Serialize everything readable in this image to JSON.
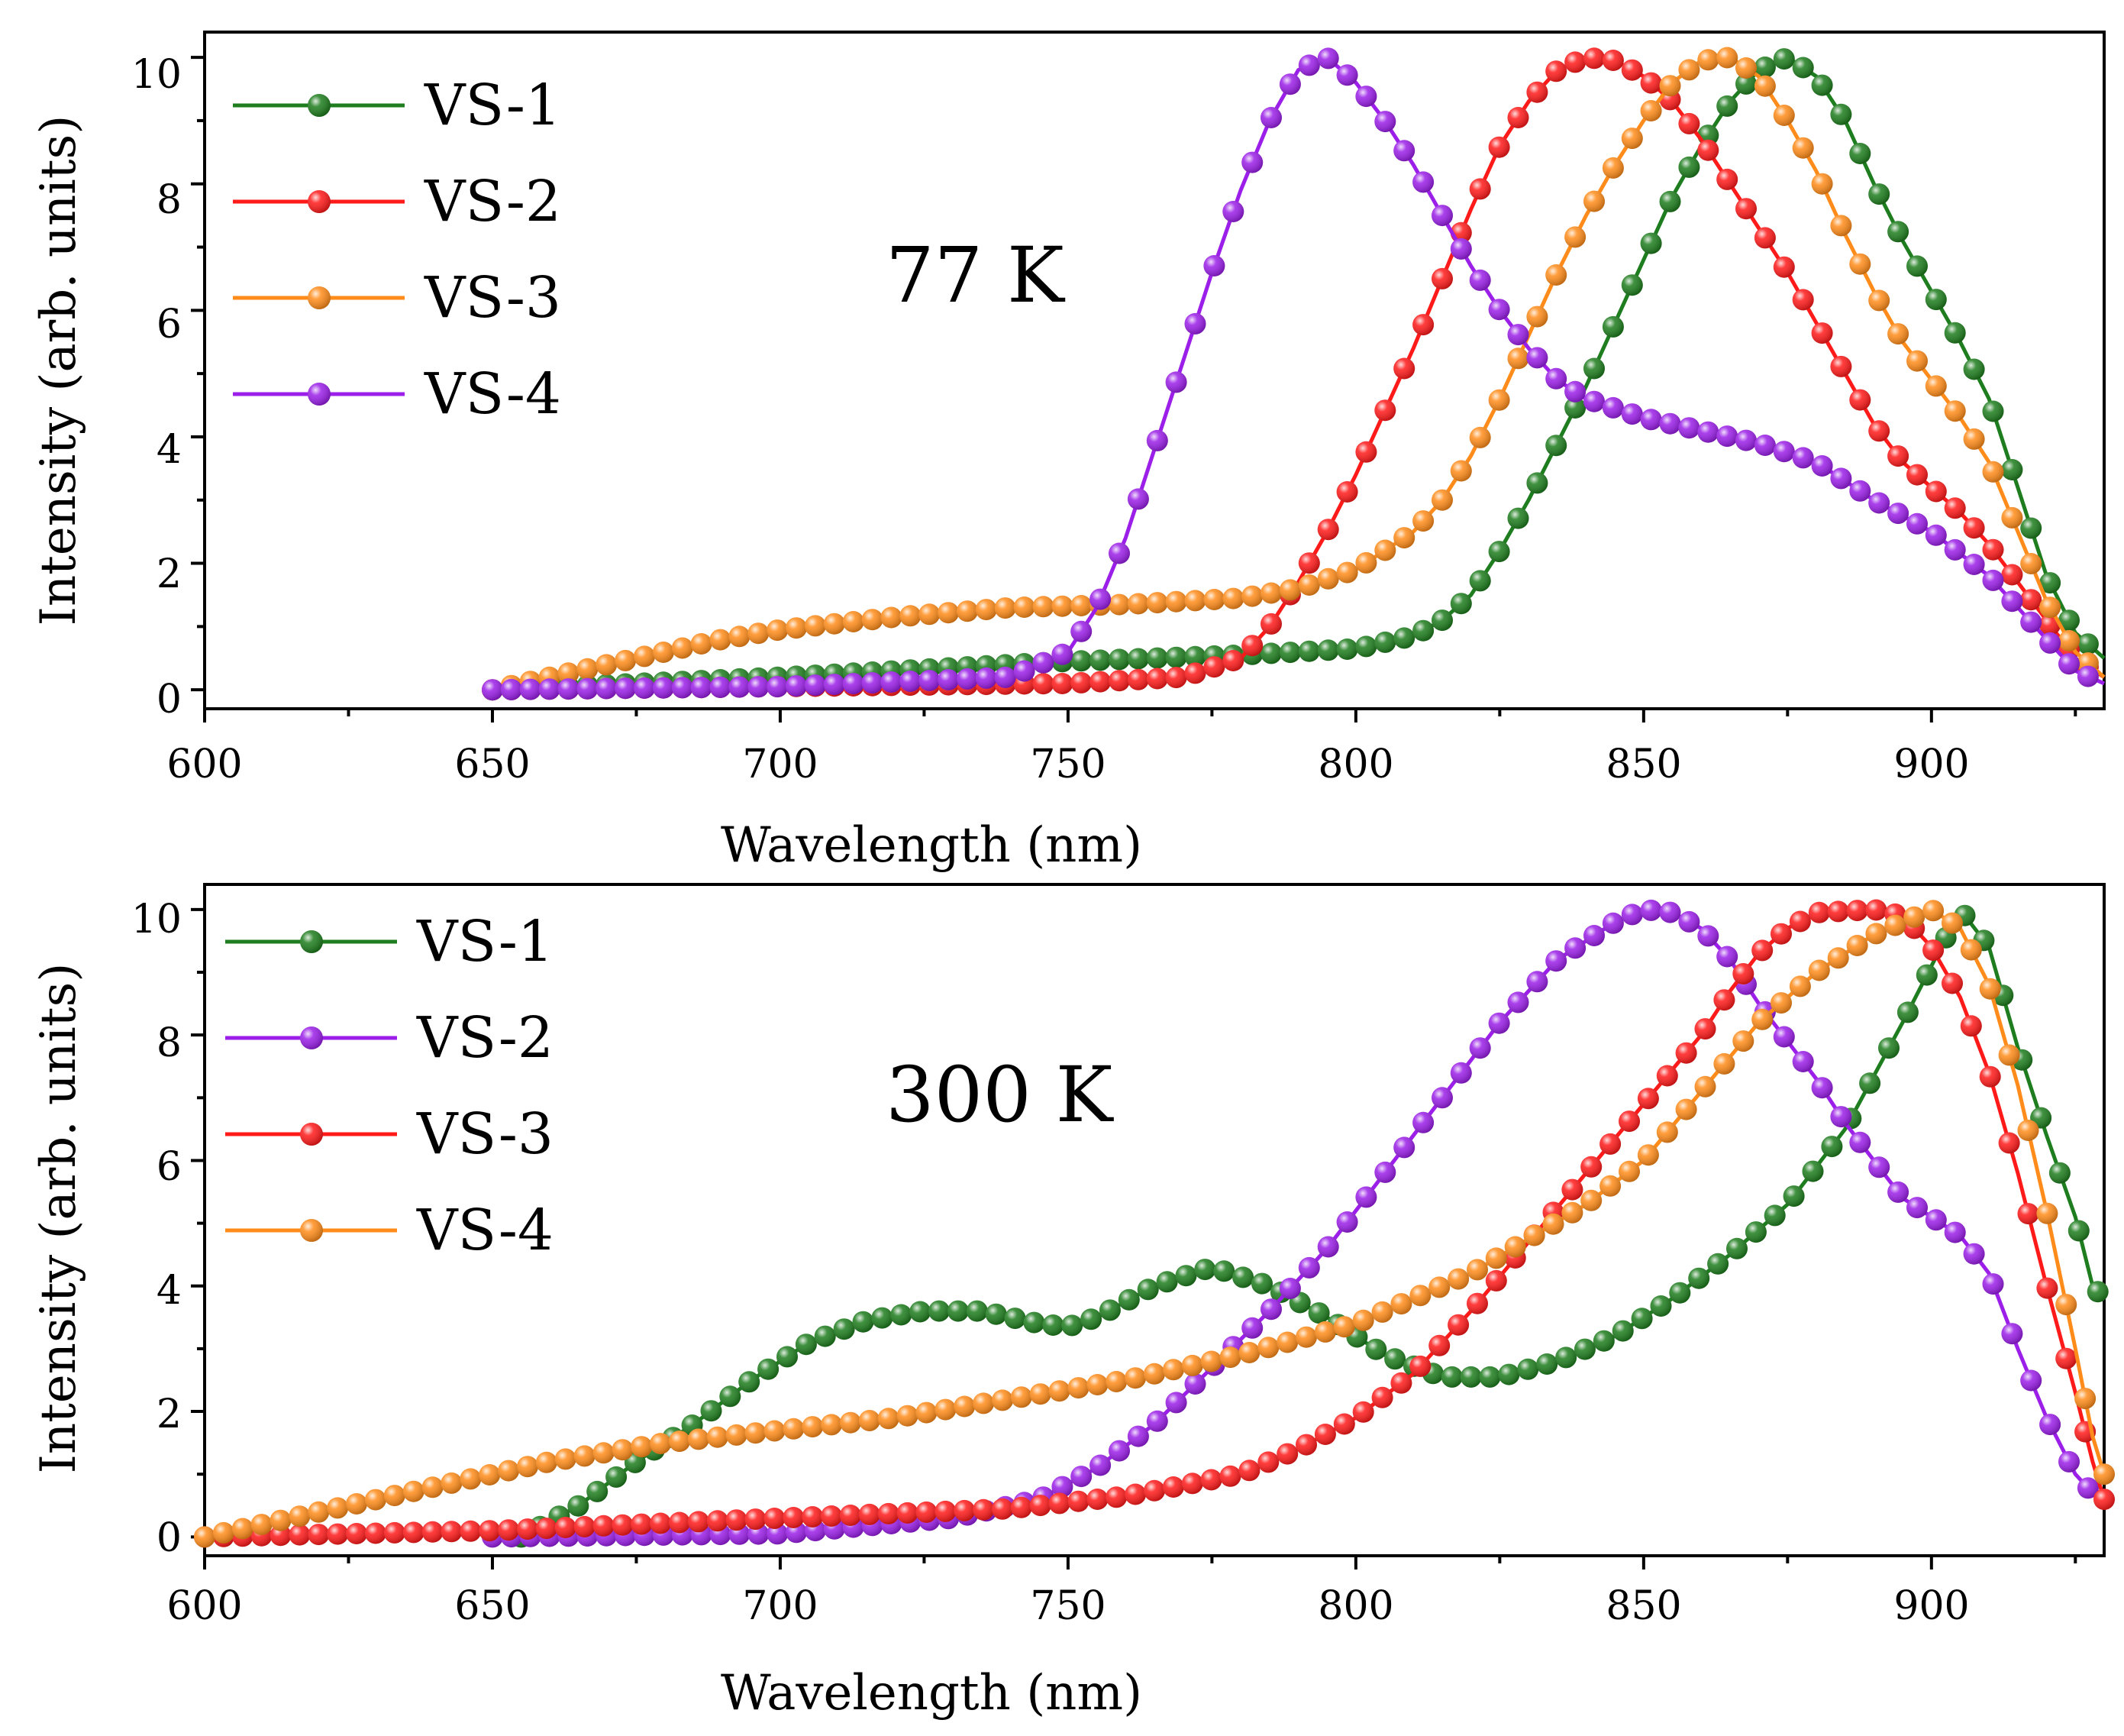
{
  "chart_data": [
    {
      "type": "line",
      "annotation": "77 K",
      "xlabel": "Wavelength (nm)",
      "ylabel": "Intensity (arb. units)",
      "xlim": [
        600,
        930
      ],
      "ylim": [
        -0.3,
        10.4
      ],
      "x_ticks": [
        600,
        650,
        700,
        750,
        800,
        850,
        900
      ],
      "x_tick_labels": [
        "600",
        "650",
        "700",
        "750",
        "800",
        "850",
        "900"
      ],
      "y_ticks": [
        0,
        2,
        4,
        6,
        8,
        10
      ],
      "y_tick_labels": [
        "0",
        "2",
        "4",
        "6",
        "8",
        "10"
      ],
      "legend_position": "top-left",
      "series": [
        {
          "name": "VS-1",
          "color": "#1e7d1e",
          "points": [
            [
              650,
              0
            ],
            [
              700,
              0.2
            ],
            [
              750,
              0.45
            ],
            [
              780,
              0.55
            ],
            [
              800,
              0.65
            ],
            [
              810,
              0.85
            ],
            [
              815,
              1.1
            ],
            [
              820,
              1.5
            ],
            [
              825,
              2.2
            ],
            [
              830,
              3.0
            ],
            [
              835,
              3.9
            ],
            [
              840,
              4.8
            ],
            [
              845,
              5.8
            ],
            [
              850,
              6.8
            ],
            [
              855,
              7.8
            ],
            [
              860,
              8.6
            ],
            [
              865,
              9.3
            ],
            [
              870,
              9.8
            ],
            [
              875,
              10
            ],
            [
              880,
              9.7
            ],
            [
              885,
              9.0
            ],
            [
              890,
              8.0
            ],
            [
              895,
              7.1
            ],
            [
              900,
              6.3
            ],
            [
              905,
              5.5
            ],
            [
              910,
              4.6
            ],
            [
              915,
              3.2
            ],
            [
              920,
              1.8
            ],
            [
              925,
              0.9
            ],
            [
              930,
              0.5
            ]
          ]
        },
        {
          "name": "VS-2",
          "color": "#ff1a1a",
          "points": [
            [
              650,
              0
            ],
            [
              700,
              0.05
            ],
            [
              750,
              0.1
            ],
            [
              770,
              0.2
            ],
            [
              780,
              0.5
            ],
            [
              785,
              1.0
            ],
            [
              790,
              1.7
            ],
            [
              795,
              2.5
            ],
            [
              800,
              3.4
            ],
            [
              805,
              4.4
            ],
            [
              810,
              5.4
            ],
            [
              815,
              6.5
            ],
            [
              820,
              7.6
            ],
            [
              825,
              8.6
            ],
            [
              830,
              9.3
            ],
            [
              835,
              9.8
            ],
            [
              840,
              10
            ],
            [
              845,
              9.95
            ],
            [
              850,
              9.7
            ],
            [
              855,
              9.3
            ],
            [
              860,
              8.7
            ],
            [
              865,
              8.0
            ],
            [
              870,
              7.3
            ],
            [
              875,
              6.6
            ],
            [
              880,
              5.8
            ],
            [
              885,
              5.0
            ],
            [
              890,
              4.2
            ],
            [
              895,
              3.6
            ],
            [
              900,
              3.2
            ],
            [
              905,
              2.8
            ],
            [
              910,
              2.3
            ],
            [
              915,
              1.7
            ],
            [
              920,
              1.1
            ],
            [
              925,
              0.5
            ],
            [
              930,
              0.2
            ]
          ]
        },
        {
          "name": "VS-3",
          "color": "#ff8c1a",
          "points": [
            [
              650,
              0
            ],
            [
              660,
              0.2
            ],
            [
              670,
              0.4
            ],
            [
              680,
              0.6
            ],
            [
              690,
              0.8
            ],
            [
              700,
              0.95
            ],
            [
              720,
              1.15
            ],
            [
              740,
              1.3
            ],
            [
              760,
              1.35
            ],
            [
              780,
              1.45
            ],
            [
              790,
              1.6
            ],
            [
              800,
              1.9
            ],
            [
              810,
              2.5
            ],
            [
              815,
              3.0
            ],
            [
              820,
              3.7
            ],
            [
              825,
              4.6
            ],
            [
              830,
              5.6
            ],
            [
              835,
              6.6
            ],
            [
              840,
              7.5
            ],
            [
              845,
              8.3
            ],
            [
              850,
              9.0
            ],
            [
              855,
              9.6
            ],
            [
              860,
              9.95
            ],
            [
              865,
              10
            ],
            [
              870,
              9.7
            ],
            [
              875,
              9.0
            ],
            [
              880,
              8.2
            ],
            [
              885,
              7.2
            ],
            [
              890,
              6.3
            ],
            [
              895,
              5.5
            ],
            [
              900,
              4.9
            ],
            [
              905,
              4.3
            ],
            [
              910,
              3.6
            ],
            [
              915,
              2.5
            ],
            [
              920,
              1.4
            ],
            [
              925,
              0.6
            ],
            [
              930,
              0.2
            ]
          ]
        },
        {
          "name": "VS-4",
          "color": "#9b1fe8",
          "points": [
            [
              650,
              0
            ],
            [
              700,
              0.05
            ],
            [
              740,
              0.2
            ],
            [
              750,
              0.6
            ],
            [
              755,
              1.3
            ],
            [
              760,
              2.4
            ],
            [
              765,
              3.8
            ],
            [
              770,
              5.2
            ],
            [
              775,
              6.6
            ],
            [
              780,
              7.9
            ],
            [
              785,
              9.0
            ],
            [
              790,
              9.8
            ],
            [
              795,
              10
            ],
            [
              800,
              9.6
            ],
            [
              805,
              9.0
            ],
            [
              810,
              8.3
            ],
            [
              815,
              7.5
            ],
            [
              820,
              6.7
            ],
            [
              825,
              6.0
            ],
            [
              830,
              5.4
            ],
            [
              835,
              4.9
            ],
            [
              840,
              4.6
            ],
            [
              850,
              4.3
            ],
            [
              860,
              4.1
            ],
            [
              870,
              3.9
            ],
            [
              880,
              3.6
            ],
            [
              890,
              3.0
            ],
            [
              900,
              2.5
            ],
            [
              910,
              1.8
            ],
            [
              915,
              1.3
            ],
            [
              920,
              0.8
            ],
            [
              925,
              0.3
            ],
            [
              930,
              0.1
            ]
          ]
        }
      ]
    },
    {
      "type": "line",
      "annotation": "300 K",
      "xlabel": "Wavelength (nm)",
      "ylabel": "Intensity (arb. units)",
      "xlim": [
        600,
        930
      ],
      "ylim": [
        -0.3,
        10.4
      ],
      "x_ticks": [
        600,
        650,
        700,
        750,
        800,
        850,
        900
      ],
      "x_tick_labels": [
        "600",
        "650",
        "700",
        "750",
        "800",
        "850",
        "900"
      ],
      "y_ticks": [
        0,
        2,
        4,
        6,
        8,
        10
      ],
      "y_tick_labels": [
        "0",
        "2",
        "4",
        "6",
        "8",
        "10"
      ],
      "legend_position": "top-left",
      "series": [
        {
          "name": "VS-1",
          "color": "#1e7d1e",
          "points": [
            [
              655,
              0
            ],
            [
              665,
              0.5
            ],
            [
              675,
              1.2
            ],
            [
              685,
              1.8
            ],
            [
              695,
              2.5
            ],
            [
              705,
              3.1
            ],
            [
              715,
              3.45
            ],
            [
              725,
              3.6
            ],
            [
              735,
              3.6
            ],
            [
              745,
              3.4
            ],
            [
              750,
              3.35
            ],
            [
              755,
              3.5
            ],
            [
              765,
              4.0
            ],
            [
              775,
              4.3
            ],
            [
              785,
              4.0
            ],
            [
              795,
              3.5
            ],
            [
              805,
              2.9
            ],
            [
              815,
              2.55
            ],
            [
              825,
              2.55
            ],
            [
              835,
              2.8
            ],
            [
              845,
              3.2
            ],
            [
              855,
              3.8
            ],
            [
              865,
              4.5
            ],
            [
              875,
              5.3
            ],
            [
              885,
              6.5
            ],
            [
              895,
              8.2
            ],
            [
              905,
              10
            ],
            [
              910,
              9.4
            ],
            [
              915,
              7.8
            ],
            [
              920,
              6.4
            ],
            [
              925,
              5.1
            ],
            [
              928,
              4.0
            ],
            [
              930,
              3.8
            ]
          ]
        },
        {
          "name": "VS-2",
          "color": "#9b1fe8",
          "points": [
            [
              650,
              0
            ],
            [
              700,
              0.05
            ],
            [
              730,
              0.3
            ],
            [
              745,
              0.6
            ],
            [
              755,
              1.1
            ],
            [
              765,
              1.8
            ],
            [
              775,
              2.7
            ],
            [
              785,
              3.6
            ],
            [
              795,
              4.6
            ],
            [
              805,
              5.8
            ],
            [
              815,
              7.0
            ],
            [
              825,
              8.2
            ],
            [
              835,
              9.2
            ],
            [
              845,
              9.8
            ],
            [
              850,
              10
            ],
            [
              855,
              9.95
            ],
            [
              860,
              9.7
            ],
            [
              865,
              9.2
            ],
            [
              870,
              8.5
            ],
            [
              875,
              7.9
            ],
            [
              880,
              7.3
            ],
            [
              885,
              6.6
            ],
            [
              890,
              6.0
            ],
            [
              895,
              5.4
            ],
            [
              900,
              5.1
            ],
            [
              905,
              4.8
            ],
            [
              910,
              4.2
            ],
            [
              915,
              3.0
            ],
            [
              920,
              1.9
            ],
            [
              925,
              1.0
            ],
            [
              928,
              0.7
            ],
            [
              930,
              0.6
            ]
          ]
        },
        {
          "name": "VS-3",
          "color": "#ff1a1a",
          "points": [
            [
              600,
              0
            ],
            [
              650,
              0.1
            ],
            [
              700,
              0.3
            ],
            [
              740,
              0.45
            ],
            [
              760,
              0.65
            ],
            [
              780,
              1.0
            ],
            [
              790,
              1.4
            ],
            [
              800,
              1.9
            ],
            [
              810,
              2.6
            ],
            [
              820,
              3.6
            ],
            [
              830,
              4.7
            ],
            [
              840,
              5.8
            ],
            [
              850,
              6.9
            ],
            [
              860,
              8.0
            ],
            [
              865,
              8.7
            ],
            [
              870,
              9.3
            ],
            [
              875,
              9.7
            ],
            [
              880,
              9.95
            ],
            [
              890,
              10
            ],
            [
              895,
              9.9
            ],
            [
              900,
              9.4
            ],
            [
              905,
              8.6
            ],
            [
              910,
              7.4
            ],
            [
              915,
              5.8
            ],
            [
              920,
              4.0
            ],
            [
              925,
              2.3
            ],
            [
              928,
              1.2
            ],
            [
              930,
              0.6
            ]
          ]
        },
        {
          "name": "VS-4",
          "color": "#ff8c1a",
          "points": [
            [
              600,
              0
            ],
            [
              620,
              0.4
            ],
            [
              640,
              0.8
            ],
            [
              660,
              1.2
            ],
            [
              680,
              1.5
            ],
            [
              700,
              1.7
            ],
            [
              720,
              1.9
            ],
            [
              740,
              2.2
            ],
            [
              760,
              2.5
            ],
            [
              780,
              2.9
            ],
            [
              800,
              3.4
            ],
            [
              820,
              4.2
            ],
            [
              840,
              5.3
            ],
            [
              850,
              6.0
            ],
            [
              860,
              7.1
            ],
            [
              870,
              8.2
            ],
            [
              880,
              9.0
            ],
            [
              890,
              9.6
            ],
            [
              900,
              10
            ],
            [
              905,
              9.7
            ],
            [
              910,
              8.8
            ],
            [
              915,
              7.2
            ],
            [
              920,
              5.2
            ],
            [
              925,
              3.0
            ],
            [
              928,
              1.6
            ],
            [
              930,
              1.0
            ]
          ]
        }
      ]
    }
  ]
}
